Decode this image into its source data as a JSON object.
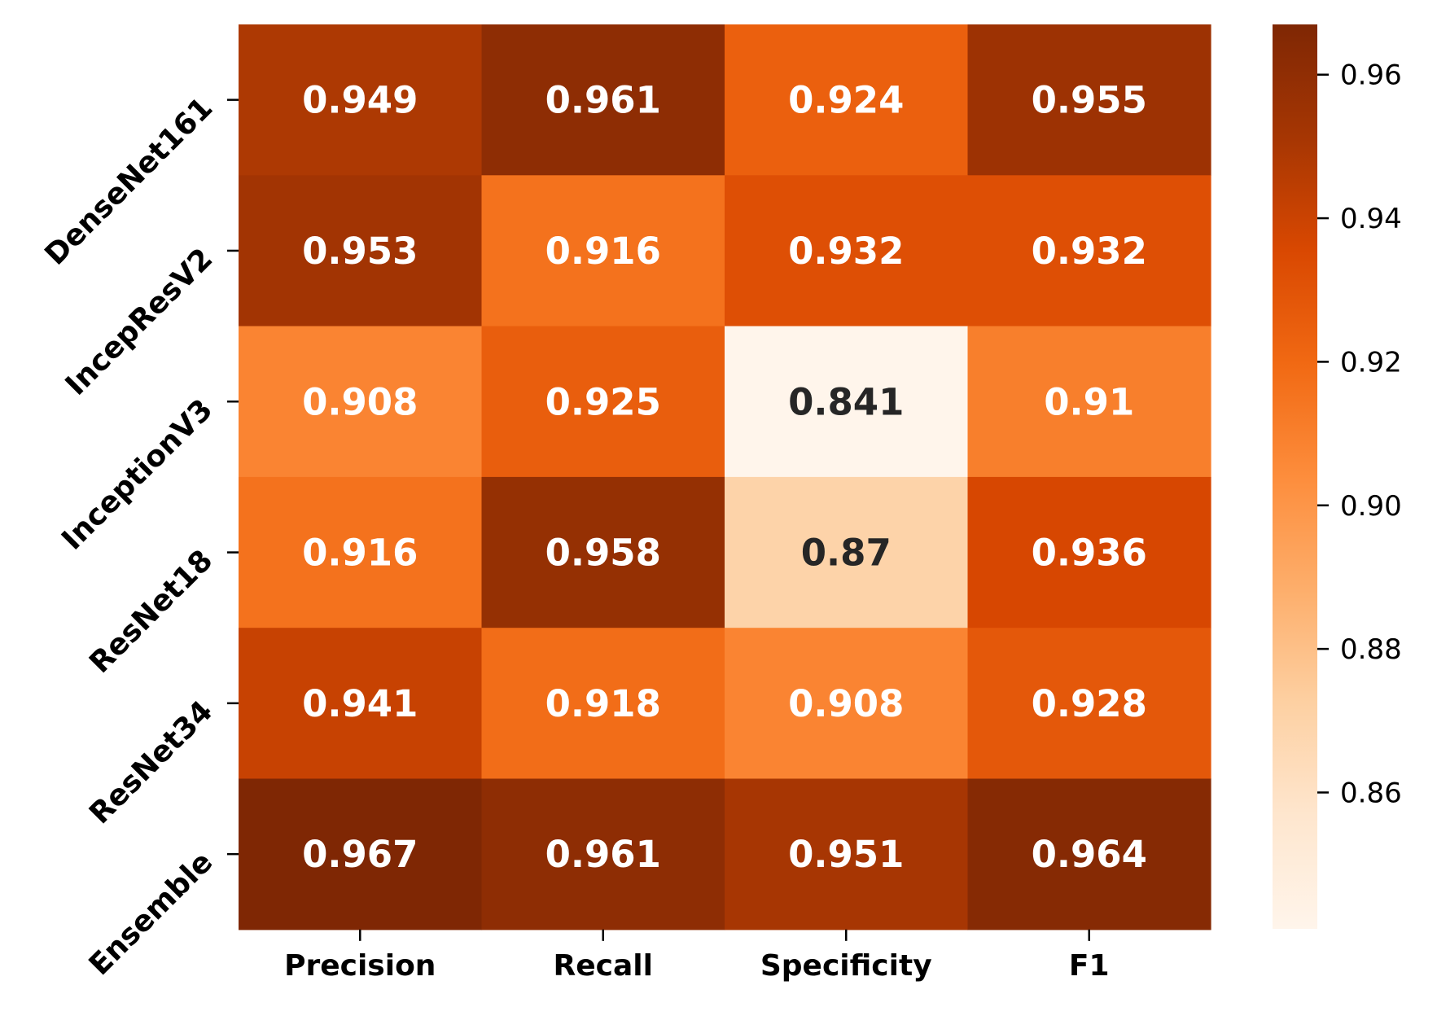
{
  "chart_data": {
    "type": "heatmap",
    "title": "",
    "xlabel": "",
    "ylabel": "",
    "columns": [
      "Precision",
      "Recall",
      "Specificity",
      "F1"
    ],
    "rows": [
      "DenseNet161",
      "IncepResV2",
      "InceptionV3",
      "ResNet18",
      "ResNet34",
      "Ensemble"
    ],
    "values": [
      [
        0.949,
        0.961,
        0.924,
        0.955
      ],
      [
        0.953,
        0.916,
        0.932,
        0.932
      ],
      [
        0.908,
        0.925,
        0.841,
        0.91
      ],
      [
        0.916,
        0.958,
        0.87,
        0.936
      ],
      [
        0.941,
        0.918,
        0.908,
        0.928
      ],
      [
        0.967,
        0.961,
        0.951,
        0.964
      ]
    ],
    "cell_labels": [
      [
        "0.949",
        "0.961",
        "0.924",
        "0.955"
      ],
      [
        "0.953",
        "0.916",
        "0.932",
        "0.932"
      ],
      [
        "0.908",
        "0.925",
        "0.841",
        "0.91"
      ],
      [
        "0.916",
        "0.958",
        "0.87",
        "0.936"
      ],
      [
        "0.941",
        "0.918",
        "0.908",
        "0.928"
      ],
      [
        "0.967",
        "0.961",
        "0.951",
        "0.964"
      ]
    ],
    "colormap": "Oranges",
    "colorbar": {
      "range": [
        0.841,
        0.967
      ],
      "ticks": [
        0.86,
        0.88,
        0.9,
        0.92,
        0.94,
        0.96
      ],
      "tick_labels": [
        "0.86",
        "0.88",
        "0.90",
        "0.92",
        "0.94",
        "0.96"
      ],
      "placement": "right"
    },
    "colors": {
      "low": "#fff5eb",
      "high": "#7f2704",
      "label_on_dark": "#ffffff",
      "label_on_light": "#262626"
    },
    "grid": false
  }
}
